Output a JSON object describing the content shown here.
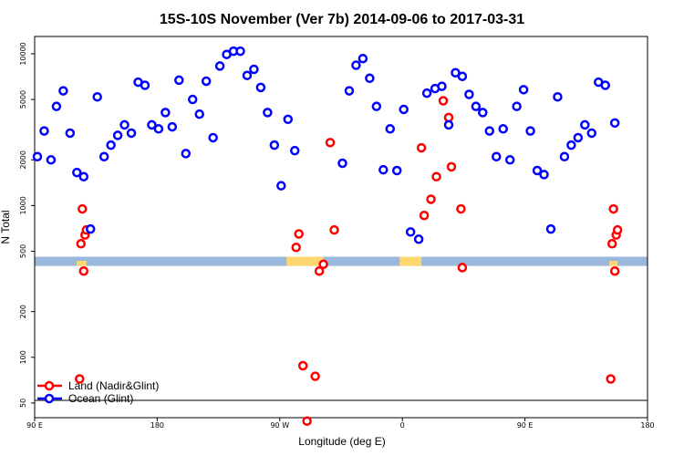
{
  "chart_data": {
    "type": "scatter",
    "title": "15S-10S November (Ver 7b)   2014-09-06 to 2017-03-31",
    "xlabel": "Longitude (deg E)",
    "ylabel": "N Total",
    "y_scale": "log",
    "xlim": [
      90,
      540
    ],
    "ylim": [
      40,
      13000
    ],
    "x_ticks": [
      {
        "value": 90,
        "label": "90 E"
      },
      {
        "value": 180,
        "label": "180"
      },
      {
        "value": 270,
        "label": "90 W"
      },
      {
        "value": 360,
        "label": "0"
      },
      {
        "value": 450,
        "label": "90 E"
      },
      {
        "value": 540,
        "label": "180"
      }
    ],
    "y_ticks": [
      {
        "value": 50,
        "label": "50"
      },
      {
        "value": 100,
        "label": "100"
      },
      {
        "value": 200,
        "label": "200"
      },
      {
        "value": 500,
        "label": "500"
      },
      {
        "value": 1000,
        "label": "1000"
      },
      {
        "value": 2000,
        "label": "2000"
      },
      {
        "value": 5000,
        "label": "5000"
      },
      {
        "value": 10000,
        "label": "10000"
      }
    ],
    "legend": {
      "placement": "bottom-left"
    },
    "series": [
      {
        "name": "Land (Nadir&Glint)",
        "color": "#ff0000",
        "points": [
          [
            123,
            72
          ],
          [
            124,
            560
          ],
          [
            125,
            950
          ],
          [
            126,
            370
          ],
          [
            127,
            640
          ],
          [
            128,
            690
          ],
          [
            282,
            530
          ],
          [
            284,
            650
          ],
          [
            287,
            88
          ],
          [
            290,
            38
          ],
          [
            296,
            75
          ],
          [
            299,
            370
          ],
          [
            302,
            410
          ],
          [
            307,
            2600
          ],
          [
            310,
            690
          ],
          [
            374,
            2400
          ],
          [
            376,
            860
          ],
          [
            381,
            1100
          ],
          [
            385,
            1550
          ],
          [
            390,
            4900
          ],
          [
            394,
            3800
          ],
          [
            396,
            1800
          ],
          [
            403,
            950
          ],
          [
            404,
            390
          ],
          [
            513,
            72
          ],
          [
            514,
            560
          ],
          [
            515,
            950
          ],
          [
            516,
            370
          ],
          [
            517,
            640
          ],
          [
            518,
            690
          ]
        ]
      },
      {
        "name": "Ocean (Glint)",
        "color": "#0000ff",
        "points": [
          [
            92,
            2100
          ],
          [
            97,
            3100
          ],
          [
            102,
            2000
          ],
          [
            106,
            4500
          ],
          [
            111,
            5700
          ],
          [
            116,
            3000
          ],
          [
            121,
            1650
          ],
          [
            126,
            1550
          ],
          [
            131,
            700
          ],
          [
            136,
            5200
          ],
          [
            141,
            2100
          ],
          [
            146,
            2500
          ],
          [
            151,
            2900
          ],
          [
            156,
            3400
          ],
          [
            161,
            3000
          ],
          [
            166,
            6500
          ],
          [
            171,
            6200
          ],
          [
            176,
            3400
          ],
          [
            181,
            3200
          ],
          [
            186,
            4100
          ],
          [
            191,
            3300
          ],
          [
            196,
            6700
          ],
          [
            201,
            2200
          ],
          [
            206,
            5000
          ],
          [
            211,
            4000
          ],
          [
            216,
            6600
          ],
          [
            221,
            2800
          ],
          [
            226,
            8300
          ],
          [
            231,
            9900
          ],
          [
            236,
            10400
          ],
          [
            241,
            10400
          ],
          [
            246,
            7200
          ],
          [
            251,
            7900
          ],
          [
            256,
            6000
          ],
          [
            261,
            4100
          ],
          [
            266,
            2500
          ],
          [
            271,
            1350
          ],
          [
            276,
            3700
          ],
          [
            281,
            2300
          ],
          [
            316,
            1900
          ],
          [
            321,
            5700
          ],
          [
            326,
            8400
          ],
          [
            331,
            9300
          ],
          [
            336,
            6900
          ],
          [
            341,
            4500
          ],
          [
            346,
            1720
          ],
          [
            351,
            3200
          ],
          [
            356,
            1700
          ],
          [
            361,
            4300
          ],
          [
            366,
            670
          ],
          [
            372,
            600
          ],
          [
            378,
            5500
          ],
          [
            384,
            5900
          ],
          [
            389,
            6100
          ],
          [
            394,
            3400
          ],
          [
            399,
            7500
          ],
          [
            404,
            7100
          ],
          [
            409,
            5400
          ],
          [
            414,
            4500
          ],
          [
            419,
            4100
          ],
          [
            424,
            3100
          ],
          [
            429,
            2100
          ],
          [
            434,
            3200
          ],
          [
            439,
            2000
          ],
          [
            444,
            4500
          ],
          [
            449,
            5800
          ],
          [
            454,
            3100
          ],
          [
            459,
            1700
          ],
          [
            464,
            1600
          ],
          [
            469,
            700
          ],
          [
            474,
            5200
          ],
          [
            479,
            2100
          ],
          [
            484,
            2500
          ],
          [
            489,
            2800
          ],
          [
            494,
            3400
          ],
          [
            499,
            3000
          ],
          [
            504,
            6500
          ],
          [
            509,
            6200
          ],
          [
            516,
            3500
          ]
        ]
      }
    ],
    "band": {
      "y_range": [
        400,
        460
      ],
      "ocean_color": "#9ab8dc",
      "land_color": "#ffd770",
      "land_segments": [
        [
          121,
          128,
          0.55
        ],
        [
          275,
          302,
          1.0
        ],
        [
          358,
          374,
          1.0
        ],
        [
          512,
          518,
          0.55
        ]
      ]
    },
    "legend_separator_y": 52
  }
}
